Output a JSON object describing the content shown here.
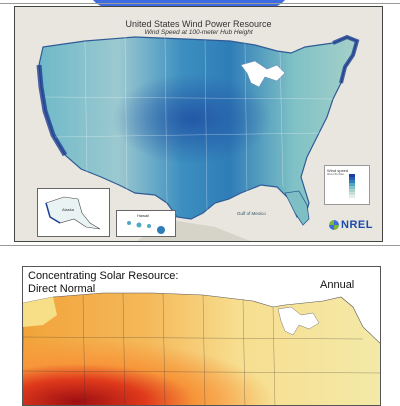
{
  "wind_map": {
    "title": "United States Wind Power Resource",
    "subtitle": "Wind Speed at 100-meter Hub Height",
    "gulf_label": "Gulf of Mexico",
    "inset_alaska_label": "Alaska",
    "inset_hawaii_label": "Hawaii",
    "legend_title": "Wind speed",
    "legend_text": "About the Data",
    "logo_text": "NREL",
    "colors": {
      "low": "#d8e6ec",
      "mid": "#53a7c4",
      "high": "#1d3f99"
    }
  },
  "solar_map": {
    "title_line1": "Concentrating Solar Resource:",
    "title_line2": "Direct Normal",
    "period": "Annual",
    "colors": {
      "low": "#fff7b0",
      "mid": "#f6a23c",
      "high": "#c21a1a"
    }
  }
}
